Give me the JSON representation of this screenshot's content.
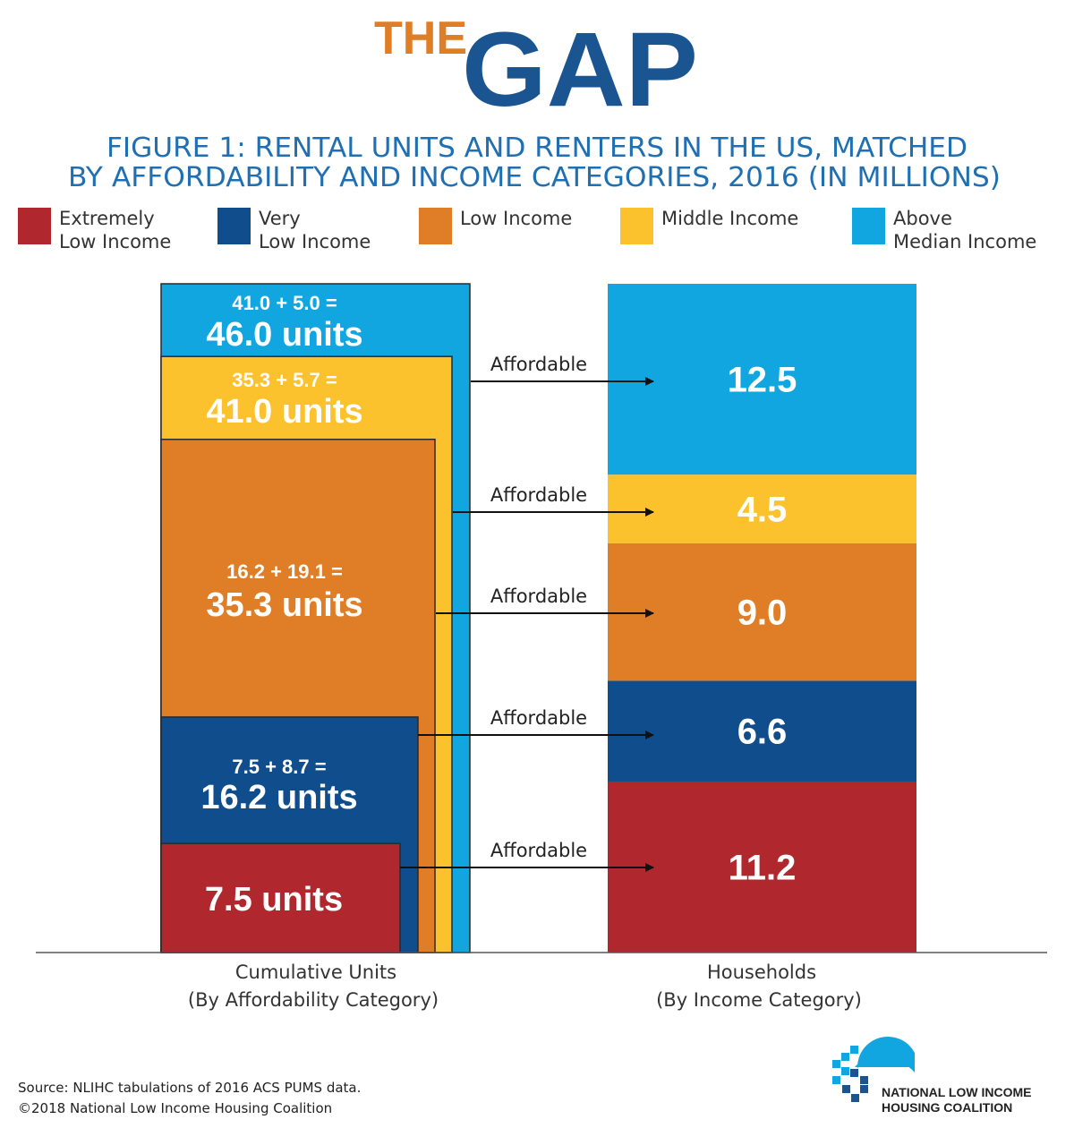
{
  "header": {
    "logo_the": "THE",
    "logo_gap": "GAP",
    "figure_title_line1": "FIGURE 1: RENTAL UNITS AND RENTERS IN THE US, MATCHED",
    "figure_title_line2": "BY AFFORDABILITY AND INCOME CATEGORIES, 2016 (IN MILLIONS)"
  },
  "colors": {
    "brand_orange": "#E07E26",
    "brand_blue": "#1A5592",
    "title_blue": "#1F6FB2",
    "extremely_low": "#B0282E",
    "very_low": "#0F4D8C",
    "low": "#DF7E26",
    "middle": "#FCC22D",
    "above_median": "#12A6E0"
  },
  "legend": [
    {
      "key": "extremely_low",
      "line1": "Extremely",
      "line2": "Low Income",
      "color": "#B0282E"
    },
    {
      "key": "very_low",
      "line1": "Very",
      "line2": "Low Income",
      "color": "#0F4D8C"
    },
    {
      "key": "low",
      "line1": "Low Income",
      "line2": "",
      "color": "#DF7E26"
    },
    {
      "key": "middle",
      "line1": "Middle Income",
      "line2": "",
      "color": "#FCC22D"
    },
    {
      "key": "above_median",
      "line1": "Above",
      "line2": "Median Income",
      "color": "#12A6E0"
    }
  ],
  "chart_data": {
    "type": "bar",
    "unit": "millions",
    "categories": [
      "Extremely Low Income",
      "Very Low Income",
      "Low Income",
      "Middle Income",
      "Above Median Income"
    ],
    "cumulative_units": {
      "axis_label_line1": "Cumulative Units",
      "axis_label_line2": "(By Affordability Category)",
      "values": [
        7.5,
        16.2,
        35.3,
        41.0,
        46.0
      ],
      "increments": [
        7.5,
        8.7,
        19.1,
        5.7,
        5.0
      ],
      "equation_labels": [
        "",
        "7.5 + 8.7 =",
        "16.2 + 19.1 =",
        "35.3 + 5.7 =",
        "41.0 + 5.0 ="
      ],
      "total_labels": [
        "7.5 units",
        "16.2 units",
        "35.3 units",
        "41.0 units",
        "46.0 units"
      ]
    },
    "households": {
      "axis_label_line1": "Households",
      "axis_label_line2": "(By Income Category)",
      "values": [
        11.2,
        6.6,
        9.0,
        4.5,
        12.5
      ],
      "value_labels": [
        "11.2",
        "6.6",
        "9.0",
        "4.5",
        "12.5"
      ]
    },
    "connector_label": "Affordable"
  },
  "footer": {
    "source": "Source: NLIHC tabulations of 2016 ACS PUMS data.",
    "copyright": "©2018 National Low Income Housing Coalition",
    "org_line1": "NATIONAL LOW INCOME",
    "org_line2": "HOUSING COALITION"
  }
}
